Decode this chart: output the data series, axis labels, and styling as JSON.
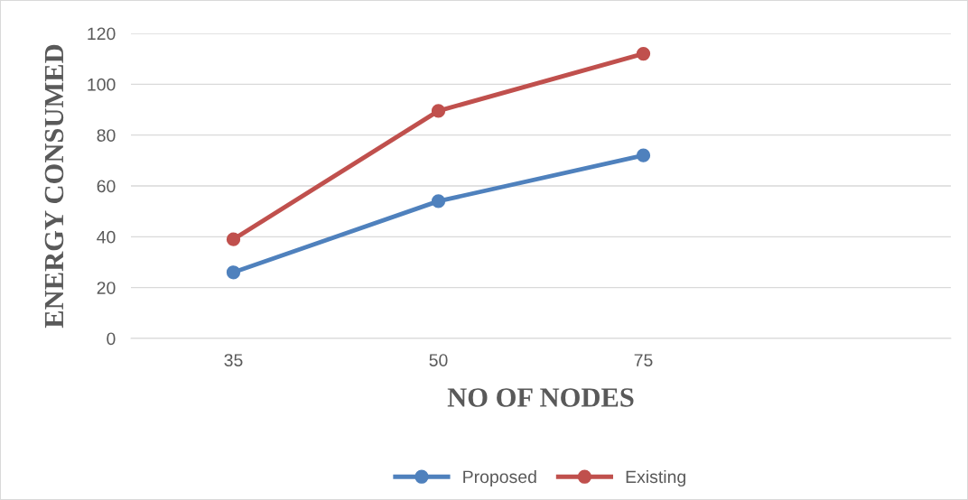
{
  "chart_data": {
    "type": "line",
    "xlabel": "NO OF NODES",
    "ylabel": "ENERGY CONSUMED",
    "categories": [
      "35",
      "50",
      "75",
      null
    ],
    "series": [
      {
        "name": "Proposed",
        "color": "#4f81bd",
        "values": [
          26,
          54,
          72,
          null
        ]
      },
      {
        "name": "Existing",
        "color": "#c0504d",
        "values": [
          39,
          89.5,
          112,
          null
        ]
      }
    ],
    "ylim": [
      0,
      120
    ],
    "yticks": [
      0,
      20,
      40,
      60,
      80,
      100,
      120
    ],
    "grid": "y",
    "legend": "bottom",
    "marker": "circle",
    "line_style": "solid"
  }
}
